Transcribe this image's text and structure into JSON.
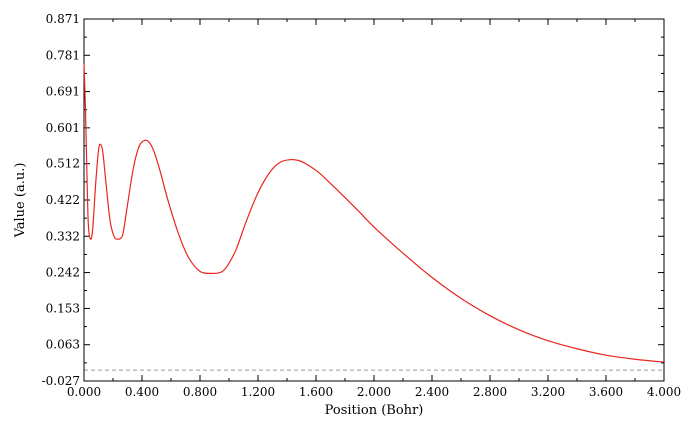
{
  "chart_data": {
    "type": "line",
    "xlabel": "Position (Bohr)",
    "ylabel": "Value (a.u.)",
    "xlim": [
      0.0,
      4.0
    ],
    "ylim": [
      -0.027,
      0.871
    ],
    "x_ticks": [
      "0.000",
      "0.400",
      "0.800",
      "1.200",
      "1.600",
      "2.000",
      "2.400",
      "2.800",
      "3.200",
      "3.600",
      "4.000"
    ],
    "y_ticks": [
      "-0.027",
      "0.063",
      "0.153",
      "0.242",
      "0.332",
      "0.422",
      "0.512",
      "0.601",
      "0.691",
      "0.781",
      "0.871"
    ],
    "reference_line_y": 0.0,
    "colors": {
      "series": "#e8261e",
      "reference": "#999999",
      "axes": "#000000"
    },
    "series": [
      {
        "x": [
          0.0,
          0.01,
          0.02,
          0.03,
          0.045,
          0.06,
          0.08,
          0.1,
          0.115,
          0.13,
          0.15,
          0.18,
          0.21,
          0.24,
          0.255,
          0.27,
          0.3,
          0.34,
          0.38,
          0.42,
          0.45,
          0.48,
          0.52,
          0.58,
          0.65,
          0.72,
          0.8,
          0.88,
          0.94,
          0.97,
          1.0,
          1.05,
          1.12,
          1.2,
          1.28,
          1.35,
          1.42,
          1.48,
          1.53,
          1.57,
          1.62,
          1.7,
          1.8,
          1.9,
          2.0,
          2.2,
          2.4,
          2.6,
          2.8,
          3.0,
          3.2,
          3.4,
          3.6,
          3.8,
          4.0
        ],
        "y": [
          0.76,
          0.65,
          0.49,
          0.36,
          0.325,
          0.35,
          0.46,
          0.545,
          0.56,
          0.54,
          0.47,
          0.37,
          0.33,
          0.325,
          0.328,
          0.34,
          0.41,
          0.5,
          0.555,
          0.57,
          0.565,
          0.545,
          0.5,
          0.42,
          0.34,
          0.28,
          0.245,
          0.24,
          0.242,
          0.25,
          0.265,
          0.3,
          0.37,
          0.44,
          0.49,
          0.515,
          0.522,
          0.52,
          0.512,
          0.503,
          0.49,
          0.463,
          0.428,
          0.392,
          0.355,
          0.29,
          0.23,
          0.178,
          0.135,
          0.1,
          0.073,
          0.053,
          0.037,
          0.027,
          0.02
        ]
      }
    ]
  }
}
